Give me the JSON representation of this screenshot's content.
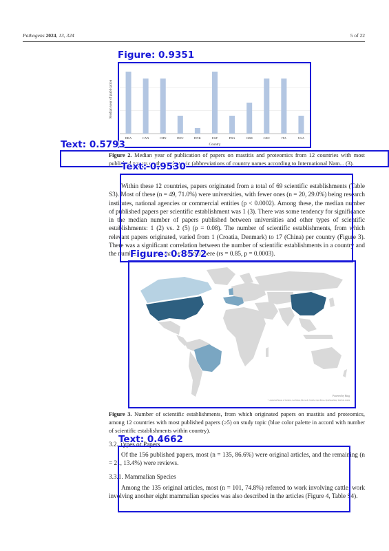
{
  "header": {
    "journal": "Pathogens",
    "year": "2024",
    "vol_pages": "13, 324",
    "page": "5 of 22"
  },
  "figure2": {
    "chart_data": {
      "type": "bar",
      "categories": [
        "BRA",
        "CAN",
        "CHN",
        "DEU",
        "DNK",
        "ESP",
        "FRA",
        "GBR",
        "GRC",
        "ITA",
        "USA"
      ],
      "ylabel": "Median year of publication",
      "xlabel": "Country",
      "bar_color": "#b3c6e2"
    },
    "caption_bold": "Figure 2.",
    "caption_text": " Median year of publication of papers on mastitis and proteomics from 12 countries with most published papers on the study topic (abbreviations of country names according to International Nam... (3)."
  },
  "paragraph1": "Within these 12 countries, papers originated from a total of 69 scientific establishments (Table S3). Most of these (n = 49, 71.0%) were universities, with fewer ones (n = 20, 29.0%) being research institutes, national agencies or commercial entities (p < 0.0002). Among these, the median number of published papers per scientific establishment was 1 (3). There was some tendency for significance in the median number of papers published between universities and other types of scientific establishments: 1 (2) vs. 2 (5) (p = 0.08). The number of scientific establishments, from which relevant papers originated, varied from 1 (Croatia, Denmark) to 17 (China) per country (Figure 3). There was a significant correlation between the number of scientific establishments in a country and the number of papers that originated there (rs = 0.85, p = 0.0003).",
  "figure3": {
    "map_credit": "© Australian Bureau of Statistics, GeoNames, Microsoft, Navinfo, Open Places, OpenStreetMap, TomTom, Zenrin",
    "map_powered": "Powered by Bing",
    "caption_bold": "Figure 3.",
    "caption_text": " Number of scientific establishments, from which originated papers on mastitis and proteomics, among 12 countries with most published papers (≥5) on study topic (blue color palette in accord with number of scientific establishments within country)."
  },
  "section_3_2": {
    "heading": "3.2. Types of Papers",
    "text": "Of the 156 published papers, most (n = 135, 86.6%) were original articles, and the remaining (n = 21, 13.4%) were reviews."
  },
  "section_3_3_1": {
    "heading": "3.3.1. Mammalian Species",
    "text": "Among the 135 original articles, most (n = 101, 74.8%) referred to work involving cattle; work involving another eight mammalian species was also described in the articles (Figure 4, Table S4)."
  },
  "detections": [
    {
      "label": "Figure: 0.9351"
    },
    {
      "label": "Text: 0.5793"
    },
    {
      "label": "Text: 0.9530"
    },
    {
      "label": "Figure: 0.8572"
    },
    {
      "label": "Text: 0.4662"
    }
  ],
  "colors": {
    "detection": "#1818d8",
    "map_dark": "#2d5f80",
    "map_mid": "#7aa6c2",
    "map_light": "#b7d2e3",
    "map_land": "#d9d9d9"
  }
}
